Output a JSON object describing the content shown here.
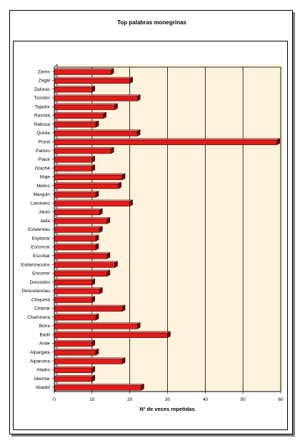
{
  "colors": {
    "plot_background": "#fdf2dc",
    "bar_front": "#e41a1a",
    "bar_top": "#ff6a6a",
    "bar_end": "#6e0000",
    "gridline": "#000000"
  },
  "chart_data": {
    "type": "bar",
    "orientation": "horizontal",
    "title": "Top palabras monegrinas",
    "xlabel": "Nº de veces repetidas",
    "ylabel": "",
    "xlim": [
      0,
      60
    ],
    "xticks": [
      "0",
      "10",
      "20",
      "30",
      "40",
      "50",
      "60"
    ],
    "grid": "vertical",
    "categories": [
      "Zarrio",
      "Zagal",
      "Zaforas",
      "Tozolón",
      "Tajador",
      "Rasmia",
      "Rabosa",
      "Quiola",
      "Pozal",
      "Panizo",
      "Paicé",
      "Oraché",
      "Maje",
      "Melico",
      "Marguin",
      "Laminero",
      "Jauto",
      "Jada",
      "Estalentau",
      "Esplazar",
      "Escoscar",
      "Escobar",
      "Esbarizaculos",
      "Encorrer",
      "Dorondón",
      "Desustanciau",
      "Chiqueta",
      "Charrar",
      "Chaminera",
      "Boira",
      "Badil",
      "Ande",
      "Alpargata",
      "Alparcera",
      "Aladro",
      "Abentar",
      "Abadol"
    ],
    "values": [
      15,
      20,
      10,
      22,
      16,
      13,
      11,
      22,
      59,
      15,
      10,
      10,
      18,
      17,
      11,
      20,
      12,
      14,
      12,
      11,
      11,
      14,
      16,
      14,
      10,
      12,
      10,
      18,
      11,
      22,
      30,
      10,
      11,
      18,
      10,
      10,
      23
    ]
  }
}
